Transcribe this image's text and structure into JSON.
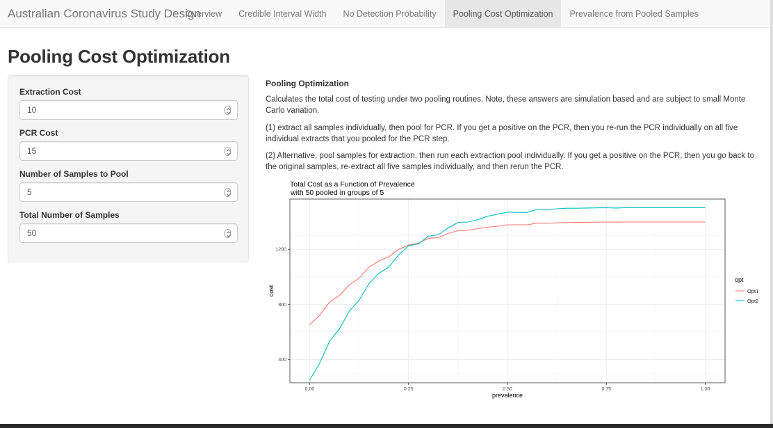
{
  "navbar": {
    "brand": "Australian Coronavirus Study Design",
    "tabs": [
      {
        "label": "Overview"
      },
      {
        "label": "Credible Interval Width"
      },
      {
        "label": "No Detection Probability"
      },
      {
        "label": "Pooling Cost Optimization"
      },
      {
        "label": "Prevalence from Pooled Samples"
      }
    ],
    "active_tab": "Pooling Cost Optimization"
  },
  "page": {
    "title": "Pooling Cost Optimization"
  },
  "sidebar": {
    "fields": [
      {
        "label": "Extraction Cost",
        "value": "10"
      },
      {
        "label": "PCR Cost",
        "value": "15"
      },
      {
        "label": "Number of Samples to Pool",
        "value": "5"
      },
      {
        "label": "Total Number of Samples",
        "value": "50"
      }
    ]
  },
  "main": {
    "heading": "Pooling Optimization",
    "paragraphs": [
      "Calculates the total cost of testing under two pooling routines. Note, these answers are simulation based and are subject to small Monte Carlo variation.",
      "(1) extract all samples individually, then pool for PCR. If you get a positive on the PCR, then you re-run the PCR individually on all five individual extracts that you pooled for the PCR step.",
      "(2) Alternative, pool samples for extraction, then run each extraction pool individually. If you get a positive on the PCR, then you go back to the original samples, re-extract all five samples individually, and then rerun the PCR."
    ]
  },
  "colors": {
    "opt1": "#f8766d",
    "opt2": "#00bfc4",
    "grid": "#ebebeb",
    "active_tab_bg": "#e7e7e7"
  },
  "chart_data": {
    "type": "line",
    "title": "Total Cost as a Function of Prevalence",
    "subtitle": "with 50 pooled in groups of 5",
    "xlabel": "prevalence",
    "ylabel": "cost",
    "xlim": [
      -0.05,
      1.05
    ],
    "ylim": [
      230,
      1565
    ],
    "x_ticks": [
      0.0,
      0.25,
      0.5,
      0.75,
      1.0
    ],
    "x_tick_labels": [
      "0.00",
      "0.25",
      "0.50",
      "0.75",
      "1.00"
    ],
    "y_ticks": [
      400,
      800,
      1200
    ],
    "y_tick_labels": [
      "400",
      "800",
      "1200"
    ],
    "grid": true,
    "legend": {
      "title": "opt",
      "placement": "right"
    },
    "x": [
      0.0,
      0.025,
      0.05,
      0.075,
      0.1,
      0.125,
      0.15,
      0.175,
      0.2,
      0.225,
      0.25,
      0.275,
      0.3,
      0.325,
      0.35,
      0.375,
      0.4,
      0.425,
      0.45,
      0.475,
      0.5,
      0.525,
      0.55,
      0.575,
      0.6,
      0.625,
      0.65,
      0.675,
      0.7,
      0.725,
      0.75,
      0.775,
      0.8,
      0.825,
      0.85,
      0.875,
      0.9,
      0.925,
      0.95,
      0.975,
      1.0
    ],
    "series": [
      {
        "name": "Opt1",
        "color": "#f8766d",
        "values": [
          650,
          720,
          815,
          865,
          940,
          990,
          1070,
          1115,
          1145,
          1200,
          1230,
          1245,
          1280,
          1285,
          1315,
          1335,
          1338,
          1350,
          1360,
          1368,
          1378,
          1378,
          1378,
          1390,
          1388,
          1392,
          1394,
          1395,
          1396,
          1397,
          1398,
          1397,
          1398,
          1398,
          1398,
          1398,
          1398,
          1398,
          1398,
          1398,
          1398
        ]
      },
      {
        "name": "Opt2",
        "color": "#00bfc4",
        "values": [
          250,
          370,
          530,
          620,
          750,
          830,
          950,
          1025,
          1070,
          1160,
          1225,
          1240,
          1295,
          1305,
          1355,
          1395,
          1398,
          1415,
          1440,
          1455,
          1470,
          1468,
          1468,
          1490,
          1488,
          1494,
          1498,
          1498,
          1500,
          1501,
          1502,
          1500,
          1502,
          1502,
          1502,
          1502,
          1502,
          1502,
          1502,
          1502,
          1502
        ]
      }
    ]
  }
}
